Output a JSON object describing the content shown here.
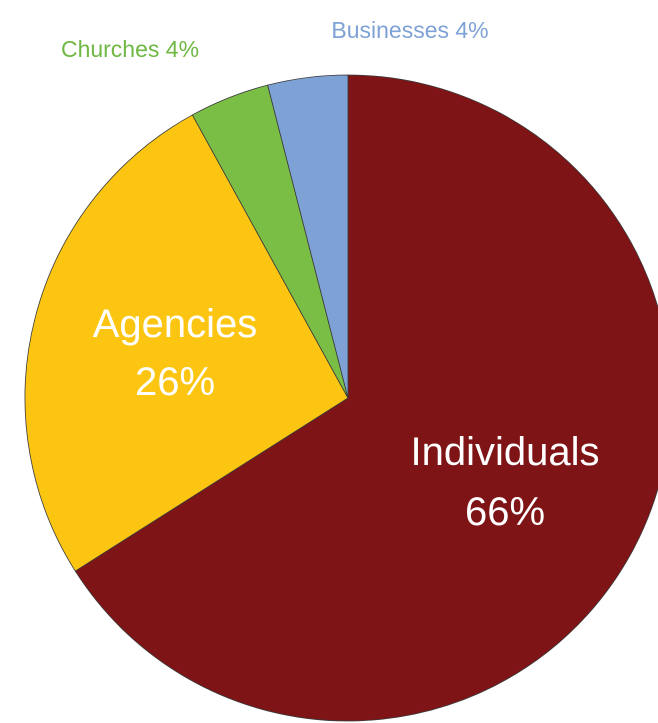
{
  "chart_data": {
    "type": "pie",
    "slices": [
      {
        "name": "Individuals",
        "value": 66,
        "color": "#7F1416",
        "label_lines": [
          "Individuals",
          "66%"
        ],
        "label_color": "#FFFFFF"
      },
      {
        "name": "Agencies",
        "value": 26,
        "color": "#FCC512",
        "label_lines": [
          "Agencies",
          "26%"
        ],
        "label_color": "#FFFFFF"
      },
      {
        "name": "Churches",
        "value": 4,
        "color": "#7BBE45",
        "label_lines": [
          "Churches 4%"
        ],
        "label_color": "#6FB844"
      },
      {
        "name": "Businesses",
        "value": 4,
        "color": "#7FA2D6",
        "label_lines": [
          "Businesses 4%"
        ],
        "label_color": "#7FA2D6"
      }
    ]
  }
}
